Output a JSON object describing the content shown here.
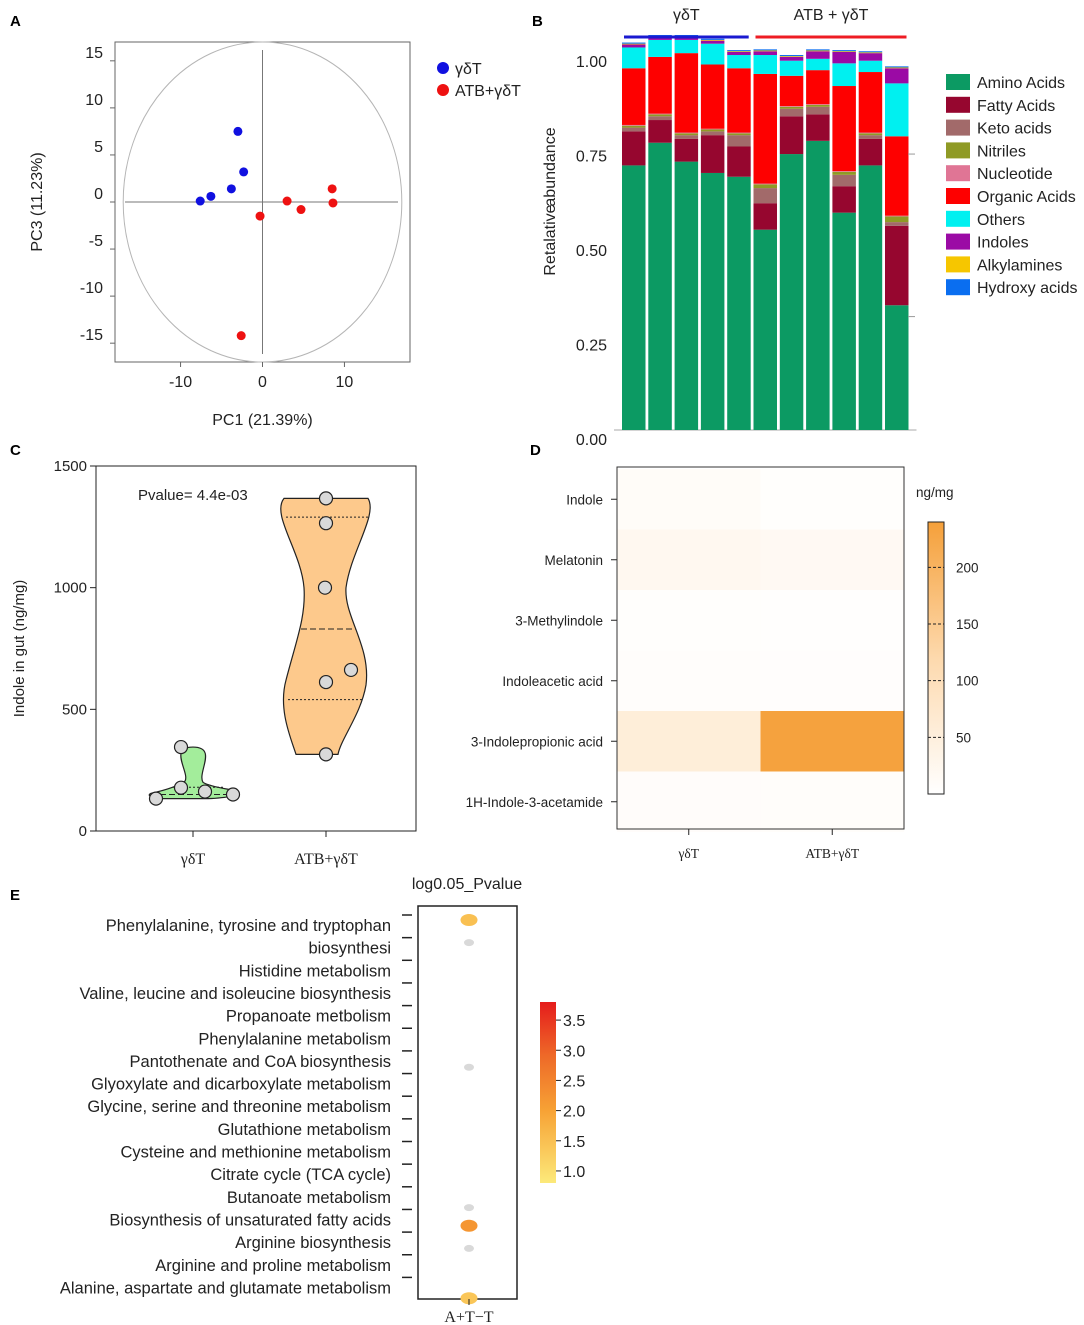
{
  "panels": {
    "a": "A",
    "b": "B",
    "c": "C",
    "d": "D",
    "e": "E"
  },
  "chart_data": [
    {
      "id": "A",
      "type": "scatter",
      "xlabel": "PC1 (21.39%)",
      "ylabel": "PC3 (11.23%)",
      "xlim": [
        -18,
        18
      ],
      "ylim": [
        -17,
        17
      ],
      "xticks": [
        "-10",
        "0",
        "10"
      ],
      "xtick_values": [
        -10,
        0,
        10
      ],
      "yticks": [
        "15",
        "10",
        "5",
        "0",
        "-5",
        "-10",
        "-15"
      ],
      "ytick_values": [
        15,
        10,
        5,
        0,
        -5,
        -10,
        -15
      ],
      "circle_radius": 17,
      "series": [
        {
          "name": "γδT",
          "color": "#1010e0",
          "points": [
            [
              -3,
              7.5
            ],
            [
              -2.3,
              3.2
            ],
            [
              -3.8,
              1.4
            ],
            [
              -6.3,
              0.6
            ],
            [
              -7.6,
              0.1
            ]
          ]
        },
        {
          "name": "ATB+γδT",
          "color": "#ee1111",
          "points": [
            [
              8.5,
              1.4
            ],
            [
              8.6,
              -0.1
            ],
            [
              3,
              0.1
            ],
            [
              4.7,
              -0.8
            ],
            [
              -0.3,
              -1.5
            ],
            [
              -2.6,
              -14.2
            ]
          ]
        }
      ]
    },
    {
      "id": "B",
      "type": "bar",
      "stacked": true,
      "ylabel_words": [
        "Retalative",
        "abundance"
      ],
      "yticks": [
        "1.00",
        "0.75",
        "0.50",
        "0.25",
        "0.00"
      ],
      "ytick_values": [
        1.0,
        0.75,
        0.5,
        0.25,
        0.0
      ],
      "groups": [
        {
          "label": "γδT",
          "color": "#1a1ad0",
          "bars": [
            0,
            4
          ]
        },
        {
          "label": "ATB + γδT",
          "color": "#ee1c24",
          "bars": [
            5,
            10
          ]
        }
      ],
      "series": [
        {
          "name": "Amino Acids",
          "color": "#0c9a63"
        },
        {
          "name": "Fatty Acids",
          "color": "#96062f"
        },
        {
          "name": "Keto acids",
          "color": "#a26a6a"
        },
        {
          "name": "Nitriles",
          "color": "#8f9a25"
        },
        {
          "name": "Nucleotide",
          "color": "#e07595"
        },
        {
          "name": "Organic Acids",
          "color": "#fe0000"
        },
        {
          "name": "Others",
          "color": "#00f0f0"
        },
        {
          "name": "Indoles",
          "color": "#9b0aa5"
        },
        {
          "name": "Alkylamines",
          "color": "#f6c600"
        },
        {
          "name": "Hydroxy acids",
          "color": "#0a6ef0"
        }
      ],
      "bars": [
        [
          0.7,
          0.09,
          0.01,
          0.005,
          0.002,
          0.15,
          0.055,
          0.008,
          0.002,
          0.003
        ],
        [
          0.76,
          0.06,
          0.01,
          0.005,
          0.002,
          0.15,
          0.045,
          0.008,
          0.002,
          0.003
        ],
        [
          0.71,
          0.06,
          0.01,
          0.005,
          0.002,
          0.21,
          0.035,
          0.008,
          0.002,
          0.003
        ],
        [
          0.68,
          0.1,
          0.01,
          0.005,
          0.002,
          0.17,
          0.055,
          0.008,
          0.002,
          0.003
        ],
        [
          0.67,
          0.08,
          0.03,
          0.005,
          0.002,
          0.17,
          0.035,
          0.008,
          0.002,
          0.003
        ],
        [
          0.53,
          0.07,
          0.04,
          0.01,
          0.002,
          0.29,
          0.05,
          0.01,
          0.002,
          0.003
        ],
        [
          0.73,
          0.1,
          0.02,
          0.005,
          0.002,
          0.08,
          0.04,
          0.01,
          0.002,
          0.003
        ],
        [
          0.765,
          0.07,
          0.02,
          0.005,
          0.002,
          0.09,
          0.03,
          0.02,
          0.002,
          0.003
        ],
        [
          0.575,
          0.07,
          0.03,
          0.008,
          0.002,
          0.225,
          0.06,
          0.03,
          0.002,
          0.003
        ],
        [
          0.7,
          0.07,
          0.01,
          0.005,
          0.002,
          0.16,
          0.03,
          0.02,
          0.002,
          0.003
        ],
        [
          0.33,
          0.21,
          0.01,
          0.015,
          0.002,
          0.21,
          0.14,
          0.04,
          0.002,
          0.003
        ]
      ]
    },
    {
      "id": "C",
      "type": "violin",
      "ylabel": "Indole in gut (ng/mg)",
      "ylim": [
        0,
        1500
      ],
      "yticks": [
        "1500",
        "1000",
        "500",
        "0"
      ],
      "ytick_values": [
        1500,
        1000,
        500,
        0
      ],
      "annotation": "Pvalue= 4.4e-03",
      "groups": [
        {
          "name": "γδT",
          "color": "#a3ed9b",
          "points": [
            345,
            178,
            162,
            150,
            133
          ],
          "median": 150,
          "q1": 140,
          "q3": 180
        },
        {
          "name": "ATB+γδT",
          "color": "#fdc98c",
          "points": [
            1367,
            1265,
            1000,
            662,
            612,
            315
          ],
          "median": 830,
          "q1": 540,
          "q3": 1290
        }
      ]
    },
    {
      "id": "D",
      "type": "heatmap",
      "unit": "ng/mg",
      "rows": [
        "Indole",
        "Melatonin",
        "3-Methylindole",
        "Indoleacetic acid",
        "3-Indolepropionic acid",
        "1H-Indole-3-acetamide"
      ],
      "columns": [
        "γδT",
        "ATB+γδT"
      ],
      "values": [
        [
          10,
          4
        ],
        [
          22,
          18
        ],
        [
          4,
          3
        ],
        [
          6,
          5
        ],
        [
          55,
          236
        ],
        [
          8,
          7
        ]
      ],
      "colorbar_range": [
        0,
        240
      ],
      "colorbar_ticks": [
        "200",
        "150",
        "100",
        "50"
      ],
      "colorbar_tick_values": [
        200,
        150,
        100,
        50
      ]
    },
    {
      "id": "E",
      "type": "scatter",
      "title": "log0.05_Pvalue",
      "xlabel": "A+T−T",
      "categories": [
        "Phenylalanine, tyrosine and tryptophan",
        "biosynthesi",
        "Histidine metabolism",
        "Valine, leucine and isoleucine biosynthesis",
        "Propanoate metbolism",
        "Phenylalanine metabolism",
        "Pantothenate and CoA biosynthesis",
        "Glyoxylate and dicarboxylate metabolism",
        "Glycine, serine and threonine metabolism",
        "Glutathione metabolism",
        "Cysteine and methionine metabolism",
        "Citrate cycle (TCA cycle)",
        "Butanoate metabolism",
        "Biosynthesis of unsaturated fatty acids",
        "Arginine biosynthesis",
        "Arginine and proline metabolism",
        "Alanine, aspartate and glutamate metabolism"
      ],
      "dots": [
        {
          "pos": 0,
          "value": 1.5
        },
        {
          "pos": 1,
          "value": null
        },
        {
          "pos": 6.5,
          "value": null
        },
        {
          "pos": 12.7,
          "value": null
        },
        {
          "pos": 13.5,
          "value": 2.2
        },
        {
          "pos": 14.5,
          "value": null
        },
        {
          "pos": 16.7,
          "value": 1.4
        }
      ],
      "colorbar_range": [
        0.8,
        3.8
      ],
      "colorbar_ticks": [
        "3.5",
        "3.0",
        "2.5",
        "2.0",
        "1.5",
        "1.0"
      ],
      "colorbar_tick_values": [
        3.5,
        3.0,
        2.5,
        2.0,
        1.5,
        1.0
      ]
    }
  ]
}
